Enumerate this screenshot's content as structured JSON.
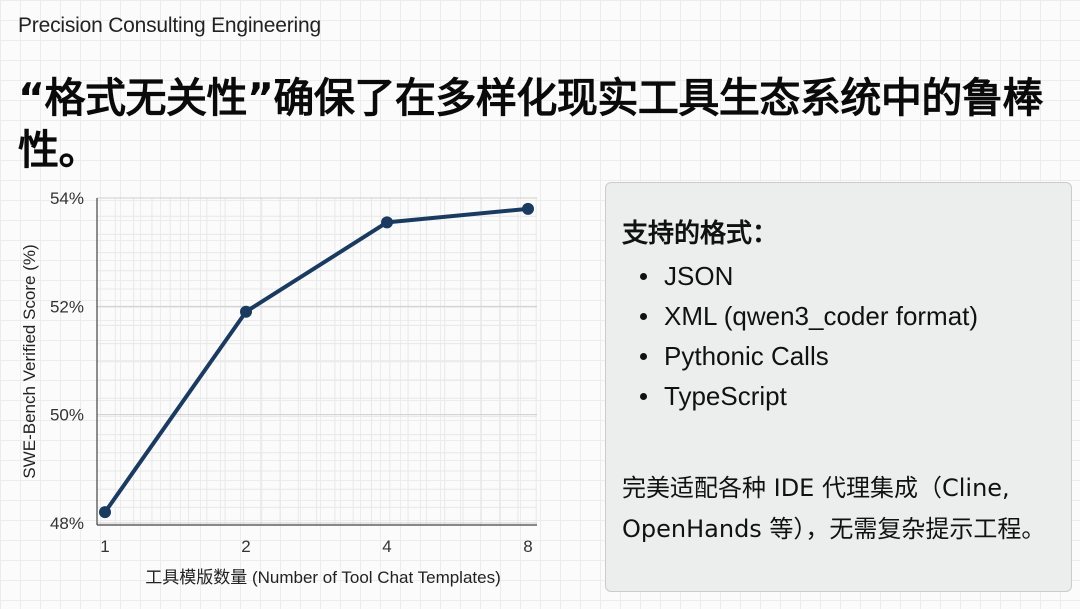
{
  "header": {
    "brand": "Precision Consulting Engineering",
    "headline": "“格式无关性”确保了在多样化现实工具生态系统中的鲁棒性。"
  },
  "chart_data": {
    "type": "line",
    "x": [
      1,
      2,
      4,
      8
    ],
    "categories": [
      "1",
      "2",
      "4",
      "8"
    ],
    "values": [
      48.2,
      51.9,
      53.55,
      53.8
    ],
    "xlabel": "工具模版数量 (Number of Tool Chat Templates)",
    "ylabel": "SWE-Bench Verified Score (%)",
    "ylim": [
      48,
      54
    ],
    "yticks": [
      48,
      50,
      52,
      54
    ],
    "ytick_labels": [
      "48%",
      "50%",
      "52%",
      "54%"
    ],
    "grid": true,
    "line_color": "#1b3a60"
  },
  "panel": {
    "heading": "支持的格式：",
    "formats": [
      "JSON",
      "XML (qwen3_coder format)",
      "Pythonic Calls",
      "TypeScript"
    ],
    "body": "完美适配各种 IDE 代理集成（Cline, OpenHands 等），无需复杂提示工程。"
  }
}
